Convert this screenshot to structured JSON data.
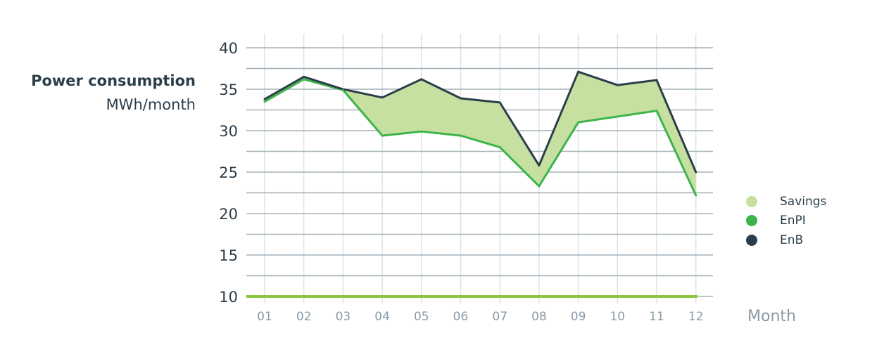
{
  "chart_data": {
    "type": "area",
    "ylabel_title": "Power consumption",
    "ylabel_unit": "MWh/month",
    "xlabel": "Month",
    "categories": [
      "01",
      "02",
      "03",
      "04",
      "05",
      "06",
      "07",
      "08",
      "09",
      "10",
      "11",
      "12"
    ],
    "ylim": [
      10,
      40
    ],
    "yticks": [
      10,
      15,
      20,
      25,
      30,
      35,
      40
    ],
    "grid": true,
    "series": [
      {
        "name": "EnB",
        "color": "#2c3e4a",
        "values": [
          33.8,
          36.5,
          35,
          34,
          36.2,
          33.9,
          33.4,
          25.8,
          37.1,
          35.5,
          36.1,
          25
        ]
      },
      {
        "name": "EnPI",
        "color": "#3cb44b",
        "values": [
          33.5,
          36.2,
          34.9,
          29.4,
          29.9,
          29.4,
          28,
          23.3,
          31,
          31.7,
          32.4,
          22.2
        ]
      }
    ],
    "fill": {
      "name": "Savings",
      "color": "#c5e0a0"
    },
    "baseline": {
      "value": 10,
      "color": "#8cc63f"
    },
    "legend": {
      "position": "right",
      "items": [
        {
          "label": "Savings",
          "color": "#c5e0a0"
        },
        {
          "label": "EnPI",
          "color": "#3cb44b"
        },
        {
          "label": "EnB",
          "color": "#2c3e4a"
        }
      ]
    }
  }
}
